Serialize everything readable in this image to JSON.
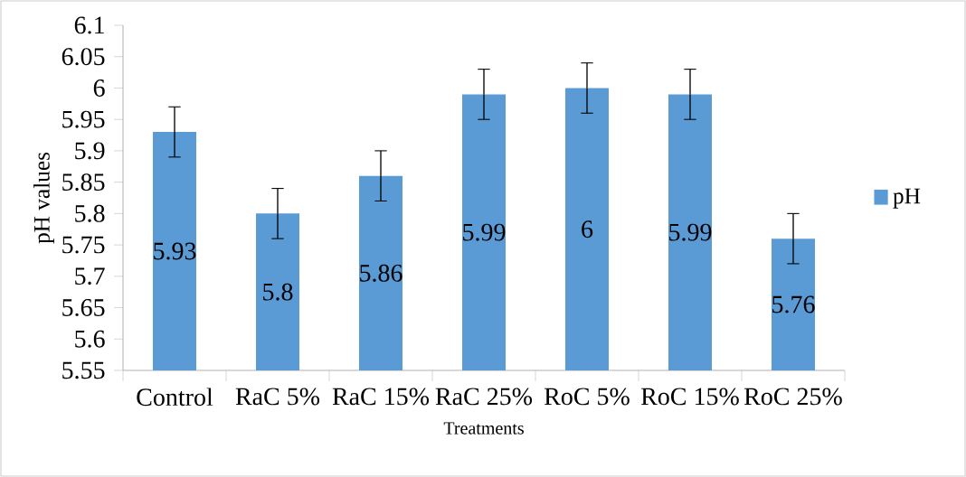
{
  "chart_data": {
    "type": "bar",
    "xlabel": "Treatments",
    "ylabel": "pH values",
    "categories": [
      "Control",
      "RaC 5%",
      "RaC 15%",
      "RaC 25%",
      "RoC 5%",
      "RoC 15%",
      "RoC 25%"
    ],
    "series": [
      {
        "name": "pH",
        "color": "#5b9bd5",
        "values": [
          5.93,
          5.8,
          5.86,
          5.99,
          6,
          5.99,
          5.76
        ],
        "errors": [
          0.04,
          0.04,
          0.04,
          0.04,
          0.04,
          0.04,
          0.04
        ]
      }
    ],
    "ylim": [
      5.55,
      6.1
    ],
    "yticks": [
      5.55,
      5.6,
      5.65,
      5.7,
      5.75,
      5.8,
      5.85,
      5.9,
      5.95,
      6,
      6.05,
      6.1
    ],
    "data_labels": true,
    "legend": "right",
    "grid": false
  }
}
